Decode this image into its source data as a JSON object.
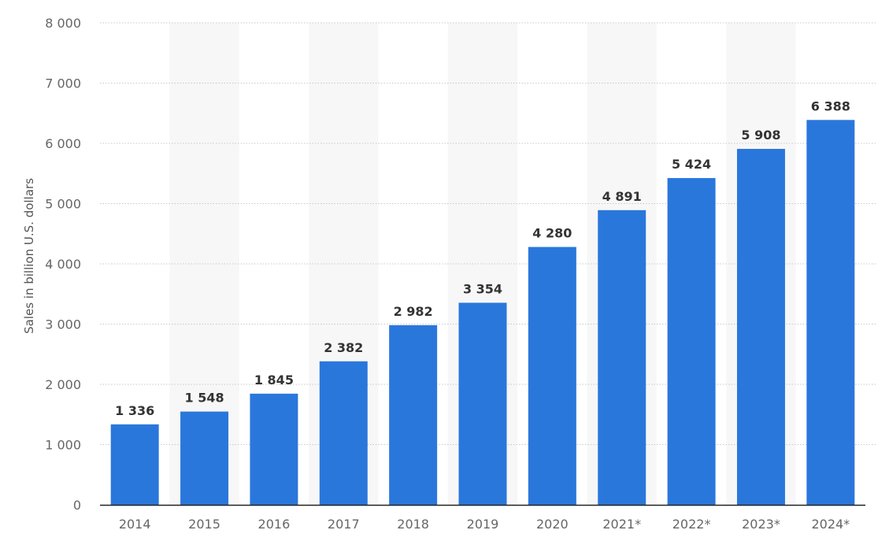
{
  "chart_data": {
    "type": "bar",
    "categories": [
      "2014",
      "2015",
      "2016",
      "2017",
      "2018",
      "2019",
      "2020",
      "2021*",
      "2022*",
      "2023*",
      "2024*"
    ],
    "values": [
      1336,
      1548,
      1845,
      2382,
      2982,
      3354,
      4280,
      4891,
      5424,
      5908,
      6388
    ],
    "value_labels": [
      "1 336",
      "1 548",
      "1 845",
      "2 382",
      "2 982",
      "3 354",
      "4 280",
      "4 891",
      "5 424",
      "5 908",
      "6 388"
    ],
    "title": "",
    "xlabel": "",
    "ylabel": "Sales in billion U.S. dollars",
    "ylim": [
      0,
      8000
    ],
    "yticks": [
      0,
      1000,
      2000,
      3000,
      4000,
      5000,
      6000,
      7000,
      8000
    ],
    "ytick_labels": [
      "0",
      "1 000",
      "2 000",
      "3 000",
      "4 000",
      "5 000",
      "6 000",
      "7 000",
      "8 000"
    ],
    "grid": true,
    "bar_color": "#2a77dc"
  }
}
